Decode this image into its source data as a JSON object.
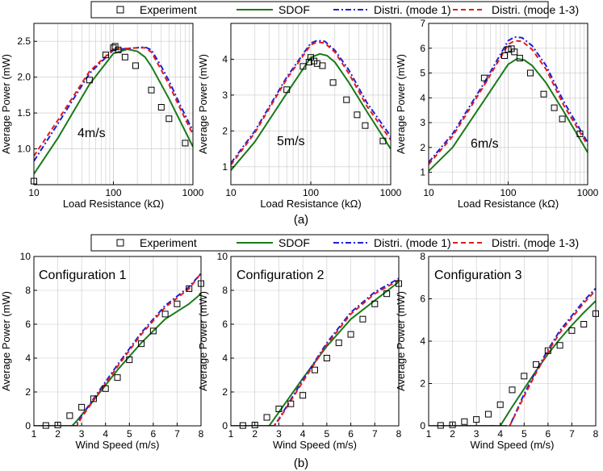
{
  "legend": {
    "experiment": "Experiment",
    "sdof": "SDOF",
    "mode1": "Distri. (mode 1)",
    "mode13": "Distri. (mode 1-3)"
  },
  "colors": {
    "sdof": "#1a7a1a",
    "mode1": "#1f1fd8",
    "mode13": "#e41a1a",
    "experiment": "#000000"
  },
  "panel_labels": {
    "a": "(a)",
    "b": "(b)"
  },
  "chart_data": [
    {
      "type": "line",
      "scale": "log",
      "annotation": "4m/s",
      "xlabel": "Load Resistance (kΩ)",
      "ylabel": "Average Power (mW)",
      "xlim": [
        10,
        1000
      ],
      "ylim": [
        0.5,
        2.75
      ],
      "xticks": [
        "10",
        "100",
        "1000"
      ],
      "yticks": [
        "1.0",
        "1.5",
        "2.0",
        "2.5"
      ],
      "experiment": {
        "x": [
          10,
          50,
          80,
          100,
          105,
          115,
          140,
          190,
          300,
          400,
          500,
          800
        ],
        "y": [
          0.55,
          1.96,
          2.31,
          2.41,
          2.43,
          2.38,
          2.28,
          2.16,
          1.82,
          1.58,
          1.42,
          1.08
        ]
      },
      "sdof": {
        "x": [
          10,
          20,
          50,
          100,
          150,
          200,
          250,
          300,
          500,
          1000
        ],
        "y": [
          0.65,
          1.15,
          1.9,
          2.33,
          2.39,
          2.36,
          2.28,
          2.15,
          1.7,
          1.03
        ]
      },
      "mode1": {
        "x": [
          10,
          20,
          50,
          100,
          150,
          200,
          250,
          300,
          400,
          500,
          700,
          1000
        ],
        "y": [
          0.83,
          1.35,
          2.05,
          2.38,
          2.4,
          2.41,
          2.42,
          2.38,
          2.15,
          1.95,
          1.6,
          1.25
        ]
      },
      "mode13": {
        "x": [
          10,
          20,
          50,
          100,
          150,
          200,
          250,
          300,
          400,
          500,
          700,
          1000
        ],
        "y": [
          0.9,
          1.4,
          2.08,
          2.39,
          2.4,
          2.41,
          2.41,
          2.35,
          2.1,
          1.9,
          1.55,
          1.2
        ]
      }
    },
    {
      "type": "line",
      "scale": "log",
      "annotation": "5m/s",
      "xlabel": "Load Resistance (kΩ)",
      "ylabel": "Average Power (mW)",
      "xlim": [
        10,
        1000
      ],
      "ylim": [
        0.5,
        5.0
      ],
      "xticks": [
        "10",
        "100",
        "1000"
      ],
      "yticks": [
        "1",
        "2",
        "3",
        "4"
      ],
      "experiment": {
        "x": [
          50,
          80,
          95,
          100,
          110,
          120,
          140,
          190,
          280,
          380,
          480,
          800
        ],
        "y": [
          3.15,
          3.8,
          3.92,
          4.05,
          3.95,
          3.88,
          3.82,
          3.35,
          2.87,
          2.45,
          2.15,
          1.72
        ]
      },
      "sdof": {
        "x": [
          10,
          20,
          50,
          100,
          130,
          160,
          200,
          300,
          500,
          1000
        ],
        "y": [
          0.9,
          1.7,
          3.05,
          4.05,
          4.15,
          4.1,
          3.92,
          3.35,
          2.55,
          1.5
        ]
      },
      "mode1": {
        "x": [
          10,
          20,
          50,
          100,
          120,
          150,
          200,
          300,
          500,
          1000
        ],
        "y": [
          1.1,
          2.0,
          3.5,
          4.45,
          4.52,
          4.5,
          4.25,
          3.7,
          2.8,
          1.85
        ]
      },
      "mode13": {
        "x": [
          10,
          20,
          50,
          100,
          120,
          150,
          200,
          300,
          500,
          1000
        ],
        "y": [
          1.05,
          1.95,
          3.45,
          4.4,
          4.48,
          4.45,
          4.2,
          3.6,
          2.7,
          1.75
        ]
      }
    },
    {
      "type": "line",
      "scale": "log",
      "annotation": "6m/s",
      "xlabel": "Load Resistance (kΩ)",
      "ylabel": "Average Power (mW)",
      "xlim": [
        10,
        1000
      ],
      "ylim": [
        0.5,
        7.0
      ],
      "xticks": [
        "10",
        "100",
        "1000"
      ],
      "yticks": [
        "1",
        "2",
        "3",
        "4",
        "5",
        "6",
        "7"
      ],
      "experiment": {
        "x": [
          50,
          90,
          100,
          110,
          120,
          140,
          190,
          280,
          380,
          480,
          800
        ],
        "y": [
          4.8,
          5.7,
          5.95,
          5.98,
          5.85,
          5.6,
          5.0,
          4.15,
          3.6,
          3.15,
          2.55
        ]
      },
      "sdof": {
        "x": [
          10,
          20,
          50,
          100,
          130,
          160,
          200,
          300,
          500,
          1000
        ],
        "y": [
          1.05,
          2.0,
          3.9,
          5.35,
          5.58,
          5.52,
          5.3,
          4.6,
          3.45,
          1.8
        ]
      },
      "mode1": {
        "x": [
          10,
          20,
          50,
          100,
          120,
          150,
          200,
          300,
          500,
          1000
        ],
        "y": [
          1.4,
          2.55,
          4.6,
          6.3,
          6.45,
          6.42,
          6.1,
          5.3,
          3.85,
          2.2
        ]
      },
      "mode13": {
        "x": [
          10,
          20,
          50,
          100,
          120,
          150,
          200,
          300,
          500,
          1000
        ],
        "y": [
          1.32,
          2.45,
          4.5,
          6.15,
          6.3,
          6.28,
          5.95,
          5.15,
          3.7,
          2.1
        ]
      }
    },
    {
      "type": "line",
      "scale": "linear",
      "annotation": "Configuration 1",
      "xlabel": "Wind Speed (m/s)",
      "ylabel": "Average Power (mW)",
      "xlim": [
        1,
        8
      ],
      "ylim": [
        0,
        10
      ],
      "xticks": [
        "1",
        "2",
        "3",
        "4",
        "5",
        "6",
        "7",
        "8"
      ],
      "yticks": [
        "0",
        "2",
        "4",
        "6",
        "8",
        "10"
      ],
      "experiment": {
        "x": [
          1.5,
          2.0,
          2.5,
          3.0,
          3.5,
          4.0,
          4.5,
          5.0,
          5.5,
          6.0,
          6.5,
          7.0,
          7.5,
          8.0
        ],
        "y": [
          0.02,
          0.05,
          0.6,
          1.1,
          1.6,
          2.2,
          2.85,
          3.9,
          4.85,
          5.6,
          6.6,
          7.2,
          8.1,
          8.4
        ]
      },
      "sdof": {
        "x": [
          1,
          2.6,
          2.8,
          3.5,
          4.5,
          5.5,
          6.5,
          7.5,
          8
        ],
        "y": [
          0,
          0,
          0.3,
          1.5,
          3.3,
          4.9,
          6.3,
          7.2,
          7.8
        ]
      },
      "mode1": {
        "x": [
          1,
          2.75,
          3.0,
          3.5,
          4.5,
          5.5,
          6.5,
          7.5,
          8
        ],
        "y": [
          0,
          0,
          0.6,
          1.6,
          3.6,
          5.5,
          7.1,
          8.2,
          9.0
        ]
      },
      "mode13": {
        "x": [
          1,
          2.8,
          3.0,
          3.5,
          4.5,
          5.5,
          6.5,
          7.5,
          8
        ],
        "y": [
          0,
          0,
          0.5,
          1.5,
          3.5,
          5.4,
          7.0,
          8.1,
          9.0
        ]
      }
    },
    {
      "type": "line",
      "scale": "linear",
      "annotation": "Configuration 2",
      "xlabel": "Wind Speed (m/s)",
      "ylabel": "Average Power (mW)",
      "xlim": [
        1,
        8
      ],
      "ylim": [
        0,
        10
      ],
      "xticks": [
        "1",
        "2",
        "3",
        "4",
        "5",
        "6",
        "7",
        "8"
      ],
      "yticks": [
        "0",
        "2",
        "4",
        "6",
        "8",
        "10"
      ],
      "experiment": {
        "x": [
          1.5,
          2.0,
          2.5,
          3.0,
          3.5,
          4.0,
          4.5,
          5.0,
          5.5,
          6.0,
          6.5,
          7.0,
          7.5,
          8.0
        ],
        "y": [
          0.02,
          0.05,
          0.5,
          1.0,
          1.3,
          1.8,
          3.3,
          4.0,
          4.9,
          5.4,
          6.3,
          7.2,
          7.8,
          8.4
        ]
      },
      "sdof": {
        "x": [
          1,
          2.6,
          3.0,
          4.0,
          5.0,
          6.0,
          7.0,
          8.0
        ],
        "y": [
          0,
          0,
          0.8,
          2.8,
          4.7,
          6.3,
          7.4,
          8.5
        ]
      },
      "mode1": {
        "x": [
          1,
          2.8,
          3.0,
          4.0,
          5.0,
          6.0,
          7.0,
          8.0
        ],
        "y": [
          0,
          0,
          0.4,
          2.7,
          4.9,
          6.7,
          7.9,
          8.7
        ]
      },
      "mode13": {
        "x": [
          1,
          2.8,
          3.0,
          4.0,
          5.0,
          6.0,
          7.0,
          8.0
        ],
        "y": [
          0,
          0,
          0.35,
          2.6,
          4.8,
          6.6,
          7.8,
          8.6
        ]
      }
    },
    {
      "type": "line",
      "scale": "linear",
      "annotation": "Configuration 3",
      "xlabel": "Wind Speed (m/s)",
      "ylabel": "Average Power (mW)",
      "xlim": [
        1,
        8
      ],
      "ylim": [
        0,
        8
      ],
      "xticks": [
        "1",
        "2",
        "3",
        "4",
        "5",
        "6",
        "7",
        "8"
      ],
      "yticks": [
        "0",
        "2",
        "4",
        "6",
        "8"
      ],
      "experiment": {
        "x": [
          1.5,
          2.0,
          2.5,
          3.0,
          3.5,
          4.0,
          4.5,
          5.0,
          5.5,
          6.0,
          6.5,
          7.0,
          7.5,
          8.0
        ],
        "y": [
          0.02,
          0.05,
          0.2,
          0.3,
          0.55,
          1.0,
          1.7,
          2.35,
          2.9,
          3.55,
          3.8,
          4.5,
          4.8,
          5.3
        ]
      },
      "sdof": {
        "x": [
          1,
          4.0,
          4.5,
          5.0,
          5.5,
          6.0,
          6.5,
          7.0,
          7.5,
          8.0
        ],
        "y": [
          0,
          0,
          0.9,
          1.75,
          2.6,
          3.4,
          4.1,
          4.75,
          5.35,
          5.9
        ]
      },
      "mode1": {
        "x": [
          1,
          4.4,
          5.0,
          5.5,
          6.0,
          6.5,
          7.0,
          7.5,
          8.0
        ],
        "y": [
          0,
          0,
          1.5,
          2.6,
          3.6,
          4.5,
          5.2,
          5.9,
          6.5
        ]
      },
      "mode13": {
        "x": [
          1,
          4.4,
          5.0,
          5.5,
          6.0,
          6.5,
          7.0,
          7.5,
          8.0
        ],
        "y": [
          0,
          0,
          1.4,
          2.5,
          3.5,
          4.4,
          5.1,
          5.8,
          6.4
        ]
      }
    }
  ]
}
